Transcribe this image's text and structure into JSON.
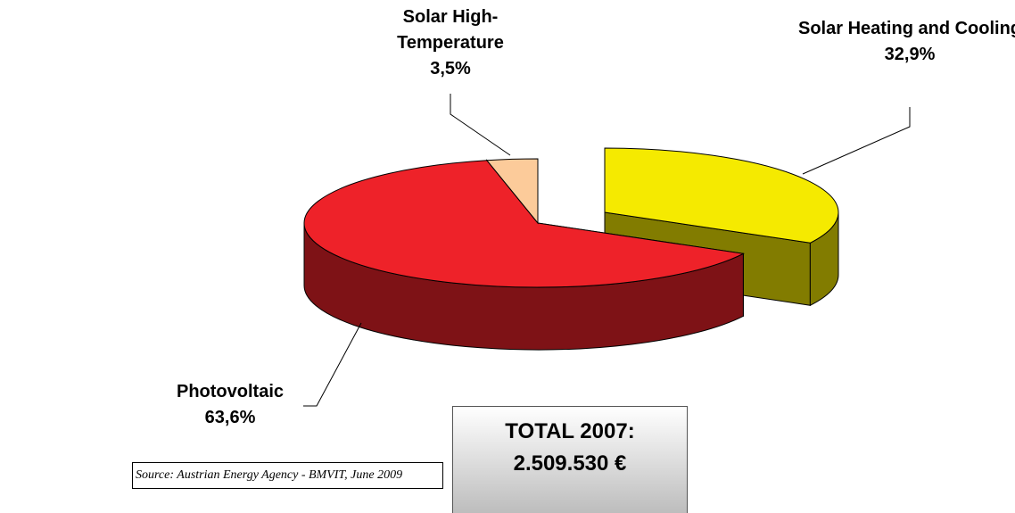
{
  "chart_data": {
    "type": "pie3d",
    "categories": [
      "Solar Heating and Cooling",
      "Photovoltaic",
      "Solar High-Temperature"
    ],
    "values": [
      32.9,
      63.6,
      3.5
    ],
    "value_labels": [
      "32,9%",
      "63,6%",
      "3,5%"
    ],
    "colors": [
      "#f5ea00",
      "#ee2229",
      "#fccb9a"
    ],
    "annotations": [
      "TOTAL 2007:",
      "2.509.530 €"
    ],
    "source": "Source: Austrian Energy Agency - BMVIT, June 2009"
  }
}
